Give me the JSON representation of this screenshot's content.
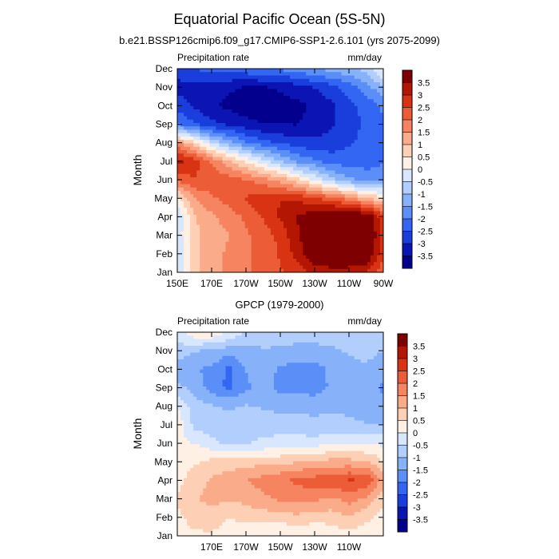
{
  "figure": {
    "title": "Equatorial Pacific Ocean (5S-5N)"
  },
  "colors": {
    "palette": [
      "#02008c",
      "#0c14b4",
      "#1a3edc",
      "#3366f2",
      "#5b8ff7",
      "#87b2fa",
      "#b2cefc",
      "#d9e7fe",
      "#fff0e6",
      "#fdd0b5",
      "#f9ab8a",
      "#f68460",
      "#ec5c36",
      "#d83414",
      "#b41604",
      "#7f0000"
    ]
  },
  "chart_data": [
    {
      "type": "heatmap",
      "title": "b.e21.BSSP126cmip6.f09_g17.CMIP6-SSP1-2.6.101 (yrs 2075-2099)",
      "left_label": "Precipitation rate",
      "right_label": "mm/day",
      "ylabel": "Month",
      "xlabel": "",
      "x_ticks": [
        "150E",
        "170E",
        "170W",
        "150W",
        "130W",
        "110W",
        "90W"
      ],
      "y_ticks": [
        "Jan",
        "Feb",
        "Mar",
        "Apr",
        "May",
        "Jun",
        "Jul",
        "Aug",
        "Sep",
        "Oct",
        "Nov",
        "Dec"
      ],
      "colorbar_labels": [
        "3.5",
        "3",
        "2.5",
        "2",
        "1.5",
        "1",
        "0.5",
        "0",
        "-0.5",
        "-1",
        "-1.5",
        "-2",
        "-2.5",
        "-3",
        "-3.5"
      ],
      "zlim": [
        -3.75,
        3.75
      ],
      "x": [
        150,
        160,
        170,
        180,
        190,
        200,
        210,
        220,
        230,
        240,
        250,
        260,
        270
      ],
      "grid": [
        [
          -0.6,
          0.8,
          1.3,
          1.5,
          1.8,
          2.0,
          2.3,
          2.6,
          2.9,
          3.1,
          3.0,
          2.8,
          2.0
        ],
        [
          -0.5,
          0.8,
          1.2,
          1.5,
          1.8,
          2.0,
          2.4,
          3.0,
          3.8,
          3.9,
          4.0,
          3.9,
          2.5
        ],
        [
          -0.3,
          0.8,
          1.2,
          1.4,
          1.8,
          2.1,
          2.5,
          3.2,
          3.9,
          4.0,
          4.1,
          4.0,
          2.7
        ],
        [
          -0.4,
          0.9,
          1.3,
          1.6,
          2.0,
          2.4,
          2.9,
          3.3,
          3.7,
          3.9,
          4.0,
          3.8,
          2.5
        ],
        [
          0.3,
          1.4,
          1.8,
          2.1,
          2.4,
          2.6,
          2.8,
          2.7,
          2.4,
          2.1,
          1.6,
          1.0,
          0.6
        ],
        [
          2.0,
          2.3,
          2.2,
          2.1,
          1.9,
          1.6,
          1.2,
          0.6,
          -0.1,
          -0.8,
          -1.3,
          -1.6,
          -1.6
        ],
        [
          3.0,
          2.6,
          1.8,
          1.0,
          0.4,
          -0.3,
          -0.9,
          -1.5,
          -1.8,
          -2.1,
          -2.1,
          -2.1,
          -1.9
        ],
        [
          1.5,
          0.6,
          -0.5,
          -1.2,
          -1.8,
          -2.2,
          -2.4,
          -2.6,
          -2.7,
          -2.6,
          -2.4,
          -2.2,
          -1.9
        ],
        [
          -1.9,
          -2.3,
          -2.7,
          -2.9,
          -3.1,
          -3.3,
          -3.3,
          -3.3,
          -3.1,
          -2.9,
          -2.6,
          -2.2,
          -1.9
        ],
        [
          -2.5,
          -2.9,
          -3.2,
          -3.4,
          -3.6,
          -3.6,
          -3.5,
          -3.4,
          -3.2,
          -2.9,
          -2.5,
          -2.2,
          -1.8
        ],
        [
          -3.0,
          -3.0,
          -3.1,
          -3.2,
          -3.3,
          -3.3,
          -3.2,
          -3.0,
          -2.8,
          -2.5,
          -2.1,
          -1.6,
          -1.0
        ],
        [
          -2.5,
          -2.3,
          -2.2,
          -2.1,
          -2.0,
          -1.9,
          -1.8,
          -1.6,
          -1.4,
          -1.2,
          -1.0,
          -0.8,
          0.2
        ]
      ]
    },
    {
      "type": "heatmap",
      "title": "GPCP (1979-2000)",
      "left_label": "Precipitation rate",
      "right_label": "mm/day",
      "ylabel": "Month",
      "xlabel": "",
      "x_ticks": [
        "170E",
        "170W",
        "150W",
        "130W",
        "110W"
      ],
      "y_ticks": [
        "Jan",
        "Feb",
        "Mar",
        "Apr",
        "May",
        "Jun",
        "Jul",
        "Aug",
        "Sep",
        "Oct",
        "Nov",
        "Dec"
      ],
      "colorbar_labels": [
        "3.5",
        "3",
        "2.5",
        "2",
        "1.5",
        "1",
        "0.5",
        "0",
        "-0.5",
        "-1",
        "-1.5",
        "-2",
        "-2.5",
        "-3",
        "-3.5"
      ],
      "zlim": [
        -3.75,
        3.75
      ],
      "x": [
        150,
        160,
        170,
        180,
        190,
        200,
        210,
        220,
        230,
        240,
        250,
        260,
        270
      ],
      "grid": [
        [
          0.3,
          0.4,
          0.4,
          0.2,
          0.1,
          0.0,
          0.0,
          0.0,
          0.0,
          0.1,
          0.3,
          0.2,
          0.0
        ],
        [
          0.4,
          0.6,
          0.7,
          0.5,
          0.6,
          0.7,
          0.7,
          0.8,
          0.7,
          0.7,
          0.9,
          0.6,
          0.3
        ],
        [
          0.5,
          0.9,
          1.1,
          1.0,
          1.1,
          1.3,
          1.5,
          1.6,
          1.5,
          1.3,
          1.6,
          1.3,
          0.6
        ],
        [
          0.3,
          0.7,
          1.0,
          1.2,
          1.4,
          1.6,
          1.8,
          2.0,
          2.1,
          2.2,
          2.4,
          2.3,
          1.2
        ],
        [
          0.2,
          0.4,
          0.6,
          0.7,
          0.7,
          0.8,
          0.8,
          0.9,
          1.0,
          1.1,
          1.1,
          1.0,
          0.5
        ],
        [
          0.1,
          0.0,
          -0.3,
          -0.6,
          -0.5,
          -0.4,
          -0.3,
          -0.2,
          -0.2,
          -0.1,
          -0.1,
          -0.1,
          -0.1
        ],
        [
          0.3,
          -0.6,
          -0.8,
          -0.8,
          -0.7,
          -0.6,
          -0.7,
          -0.8,
          -0.9,
          -0.8,
          -0.8,
          -0.9,
          -0.9
        ],
        [
          0.0,
          -0.7,
          -0.9,
          -1.0,
          -0.9,
          -1.0,
          -1.1,
          -1.0,
          -1.0,
          -1.0,
          -1.1,
          -1.2,
          -1.3
        ],
        [
          -0.8,
          -1.1,
          -1.6,
          -2.0,
          -1.5,
          -1.2,
          -1.6,
          -1.6,
          -1.7,
          -1.3,
          -1.2,
          -1.1,
          -1.5
        ],
        [
          -1.3,
          -1.4,
          -1.5,
          -2.0,
          -1.4,
          -1.1,
          -1.5,
          -1.6,
          -1.6,
          -1.3,
          -1.1,
          -1.0,
          -1.3
        ],
        [
          -0.6,
          -0.9,
          -1.0,
          -1.2,
          -1.1,
          -1.0,
          -1.0,
          -1.1,
          -1.1,
          -1.0,
          -0.9,
          -0.8,
          -0.9
        ],
        [
          -0.3,
          0.4,
          0.4,
          0.0,
          -0.5,
          -0.6,
          -0.7,
          -0.7,
          -0.7,
          -0.7,
          -0.6,
          -0.6,
          -0.5
        ]
      ]
    }
  ]
}
